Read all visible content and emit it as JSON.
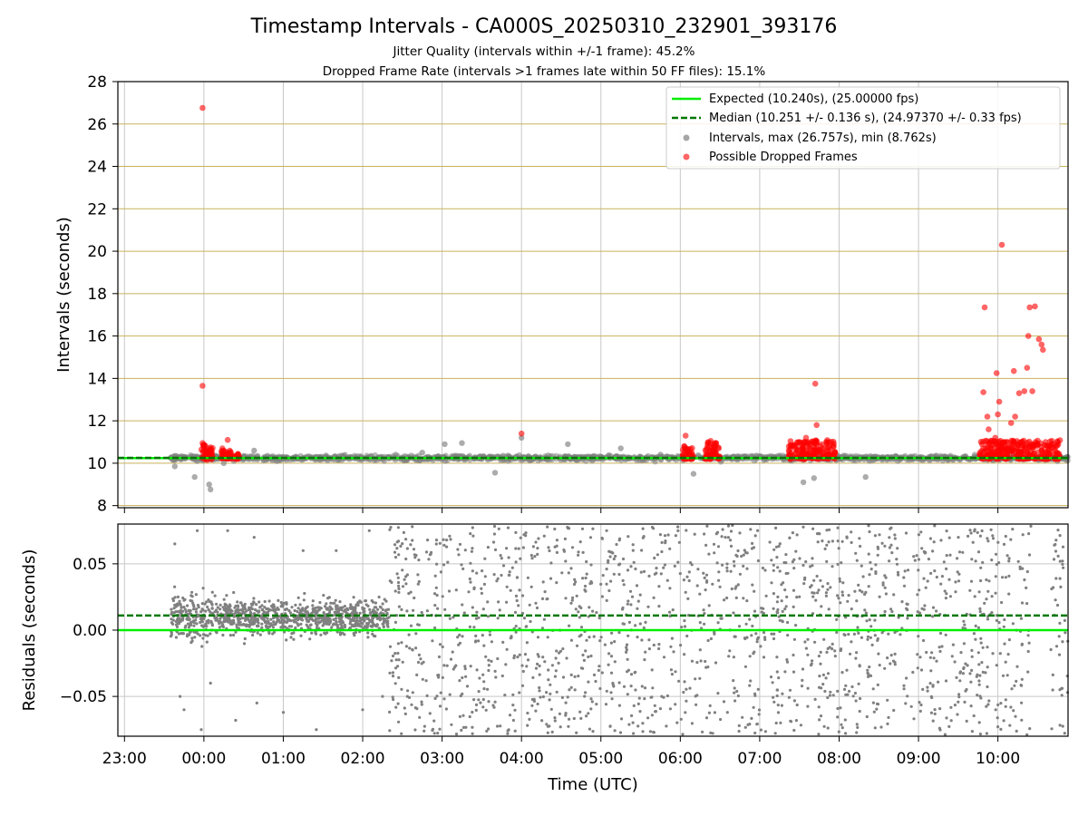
{
  "title": "Timestamp Intervals - CA000S_20250310_232901_393176",
  "subtitle_1": "Jitter Quality (intervals within +/-1 frame): 45.2%",
  "subtitle_2": "Dropped Frame Rate (intervals >1 frames late within 50 FF files): 15.1%",
  "colors": {
    "expected": "#00ee00",
    "median": "#007700",
    "intervals": "#808080",
    "dropped": "#ff0000",
    "hgrid_top": "#c9b25c",
    "grid": "#c8c8c8"
  },
  "chart_data": [
    {
      "type": "scatter",
      "ylabel": "Intervals (seconds)",
      "ylim": [
        7.9,
        28.0
      ],
      "yticks": [
        "8",
        "10",
        "12",
        "14",
        "16",
        "18",
        "20",
        "22",
        "24",
        "26",
        "28"
      ],
      "x_range": [
        "22:55",
        "10:53"
      ],
      "grid": true,
      "legend_position": "upper right",
      "legend": [
        {
          "label": "Expected (10.240s), (25.00000 fps)",
          "style": "solid-line",
          "color": "#00ee00"
        },
        {
          "label": "Median (10.251 +/- 0.136 s), (24.97370 +/- 0.33 fps)",
          "style": "dashed-line",
          "color": "#007700"
        },
        {
          "label": "Intervals, max (26.757s), min (8.762s)",
          "style": "marker",
          "color": "#808080"
        },
        {
          "label": "Possible Dropped Frames",
          "style": "marker",
          "color": "#ff0000"
        }
      ],
      "expected_interval": 10.24,
      "median_interval": 10.251,
      "series": [
        {
          "name": "Intervals, max (26.757s), min (8.762s)",
          "points": [
            [
              "23:35",
              10.25
            ],
            [
              "23:38",
              9.85
            ],
            [
              "23:45",
              10.3
            ],
            [
              "23:52",
              10.2
            ],
            [
              "23:53",
              9.35
            ],
            [
              "23:55",
              10.1
            ],
            [
              "00:04",
              9.0
            ],
            [
              "00:05",
              8.76
            ],
            [
              "00:09",
              10.35
            ],
            [
              "00:15",
              10.0
            ],
            [
              "00:30",
              10.3
            ],
            [
              "00:38",
              10.6
            ],
            [
              "00:45",
              10.2
            ],
            [
              "01:00",
              10.3
            ],
            [
              "01:15",
              10.25
            ],
            [
              "01:30",
              10.2
            ],
            [
              "01:45",
              10.3
            ],
            [
              "02:00",
              10.25
            ],
            [
              "02:25",
              10.4
            ],
            [
              "02:45",
              10.5
            ],
            [
              "03:00",
              10.3
            ],
            [
              "03:02",
              10.9
            ],
            [
              "03:15",
              10.95
            ],
            [
              "03:30",
              10.2
            ],
            [
              "03:40",
              9.55
            ],
            [
              "04:00",
              11.2
            ],
            [
              "04:10",
              10.3
            ],
            [
              "04:35",
              10.9
            ],
            [
              "05:00",
              10.3
            ],
            [
              "05:15",
              10.7
            ],
            [
              "05:30",
              10.3
            ],
            [
              "05:45",
              10.4
            ],
            [
              "06:10",
              9.5
            ],
            [
              "06:20",
              10.2
            ],
            [
              "06:40",
              10.3
            ],
            [
              "07:00",
              10.3
            ],
            [
              "07:10",
              10.3
            ],
            [
              "07:25",
              10.2
            ],
            [
              "07:33",
              9.1
            ],
            [
              "07:41",
              9.3
            ],
            [
              "08:00",
              10.3
            ],
            [
              "08:05",
              10.35
            ],
            [
              "08:20",
              9.35
            ],
            [
              "08:40",
              10.3
            ],
            [
              "09:00",
              10.2
            ],
            [
              "09:20",
              10.3
            ],
            [
              "09:40",
              10.2
            ],
            [
              "10:00",
              10.3
            ],
            [
              "10:30",
              10.2
            ],
            [
              "10:45",
              10.1
            ]
          ]
        },
        {
          "name": "Possible Dropped Frames",
          "points": [
            [
              "23:59",
              26.76
            ],
            [
              "23:59",
              13.65
            ],
            [
              "23:59",
              10.95
            ],
            [
              "00:00",
              10.75
            ],
            [
              "00:01",
              10.6
            ],
            [
              "00:02",
              10.5
            ],
            [
              "00:04",
              10.4
            ],
            [
              "00:06",
              10.45
            ],
            [
              "00:14",
              10.7
            ],
            [
              "00:16",
              10.55
            ],
            [
              "00:18",
              11.1
            ],
            [
              "00:20",
              10.4
            ],
            [
              "00:23",
              10.35
            ],
            [
              "00:26",
              10.4
            ],
            [
              "04:00",
              11.4
            ],
            [
              "06:03",
              10.8
            ],
            [
              "06:04",
              11.3
            ],
            [
              "06:05",
              10.6
            ],
            [
              "06:07",
              10.5
            ],
            [
              "06:22",
              10.8
            ],
            [
              "06:23",
              11.05
            ],
            [
              "06:25",
              10.6
            ],
            [
              "06:27",
              10.5
            ],
            [
              "06:29",
              10.7
            ],
            [
              "07:25",
              10.8
            ],
            [
              "07:28",
              10.6
            ],
            [
              "07:30",
              11.0
            ],
            [
              "07:32",
              10.5
            ],
            [
              "07:35",
              11.2
            ],
            [
              "07:38",
              10.7
            ],
            [
              "07:41",
              10.6
            ],
            [
              "07:42",
              13.75
            ],
            [
              "07:43",
              11.8
            ],
            [
              "07:46",
              10.55
            ],
            [
              "07:50",
              10.45
            ],
            [
              "07:53",
              10.4
            ],
            [
              "07:56",
              10.35
            ],
            [
              "09:48",
              10.9
            ],
            [
              "09:49",
              13.35
            ],
            [
              "09:50",
              17.35
            ],
            [
              "09:52",
              12.2
            ],
            [
              "09:53",
              11.6
            ],
            [
              "09:55",
              10.5
            ],
            [
              "09:58",
              11.2
            ],
            [
              "09:59",
              14.25
            ],
            [
              "10:00",
              12.3
            ],
            [
              "10:01",
              12.9
            ],
            [
              "10:02",
              10.8
            ],
            [
              "10:03",
              20.3
            ],
            [
              "10:05",
              11.0
            ],
            [
              "10:08",
              10.6
            ],
            [
              "10:10",
              11.9
            ],
            [
              "10:12",
              14.35
            ],
            [
              "10:13",
              12.2
            ],
            [
              "10:16",
              13.3
            ],
            [
              "10:18",
              11.0
            ],
            [
              "10:20",
              13.4
            ],
            [
              "10:22",
              14.5
            ],
            [
              "10:23",
              16.0
            ],
            [
              "10:24",
              17.35
            ],
            [
              "10:26",
              13.4
            ],
            [
              "10:28",
              17.4
            ],
            [
              "10:30",
              10.9
            ],
            [
              "10:31",
              15.85
            ],
            [
              "10:33",
              15.6
            ],
            [
              "10:34",
              15.35
            ],
            [
              "10:36",
              11.0
            ],
            [
              "10:38",
              10.7
            ],
            [
              "10:40",
              10.5
            ],
            [
              "10:43",
              10.4
            ],
            [
              "10:45",
              10.2
            ],
            [
              "10:47",
              10.3
            ]
          ]
        }
      ],
      "dense_bands_red": [
        [
          "23:58",
          "00:07",
          10.15,
          10.9
        ],
        [
          "00:13",
          "00:27",
          10.2,
          10.6
        ],
        [
          "06:01",
          "06:10",
          10.2,
          10.9
        ],
        [
          "06:18",
          "06:30",
          10.2,
          11.0
        ],
        [
          "07:22",
          "07:57",
          10.2,
          11.1
        ],
        [
          "09:46",
          "10:47",
          10.2,
          11.1
        ]
      ],
      "dense_band_gray": [
        "23:35",
        "10:53",
        9.95,
        10.55
      ]
    },
    {
      "type": "scatter",
      "xlabel": "Time (UTC)",
      "ylabel": "Residuals (seconds)",
      "ylim": [
        -0.08,
        0.08
      ],
      "yticks": [
        "−0.05",
        "0.00",
        "0.05"
      ],
      "xticks": [
        "23:00",
        "00:00",
        "01:00",
        "02:00",
        "03:00",
        "04:00",
        "05:00",
        "06:00",
        "07:00",
        "08:00",
        "09:00",
        "10:00"
      ],
      "x_range": [
        "22:55",
        "10:53"
      ],
      "grid": true,
      "zero_line": 0.0,
      "median_residual": 0.011,
      "series": [
        {
          "name": "",
          "spread": [
            [
              "23:35",
              "00:10",
              0.04
            ],
            [
              "00:10",
              "02:20",
              0.03
            ],
            [
              "02:20",
              "07:20",
              0.08
            ],
            [
              "07:20",
              "09:35",
              0.08
            ],
            [
              "09:35",
              "10:25",
              0.08
            ],
            [
              "10:40",
              "10:53",
              0.08
            ]
          ],
          "outliers": [
            [
              "23:38",
              0.065
            ],
            [
              "23:42",
              -0.05
            ],
            [
              "23:45",
              -0.06
            ],
            [
              "23:55",
              0.075
            ],
            [
              "23:58",
              -0.075
            ],
            [
              "00:05",
              -0.04
            ],
            [
              "00:18",
              0.075
            ],
            [
              "00:24",
              -0.068
            ],
            [
              "00:38",
              0.07
            ],
            [
              "00:40",
              -0.055
            ],
            [
              "01:00",
              -0.062
            ],
            [
              "01:15",
              0.06
            ],
            [
              "01:25",
              -0.075
            ],
            [
              "01:40",
              0.06
            ],
            [
              "02:00",
              -0.06
            ],
            [
              "02:05",
              0.075
            ],
            [
              "02:15",
              -0.05
            ],
            [
              "02:25",
              0.055
            ]
          ]
        }
      ]
    }
  ]
}
